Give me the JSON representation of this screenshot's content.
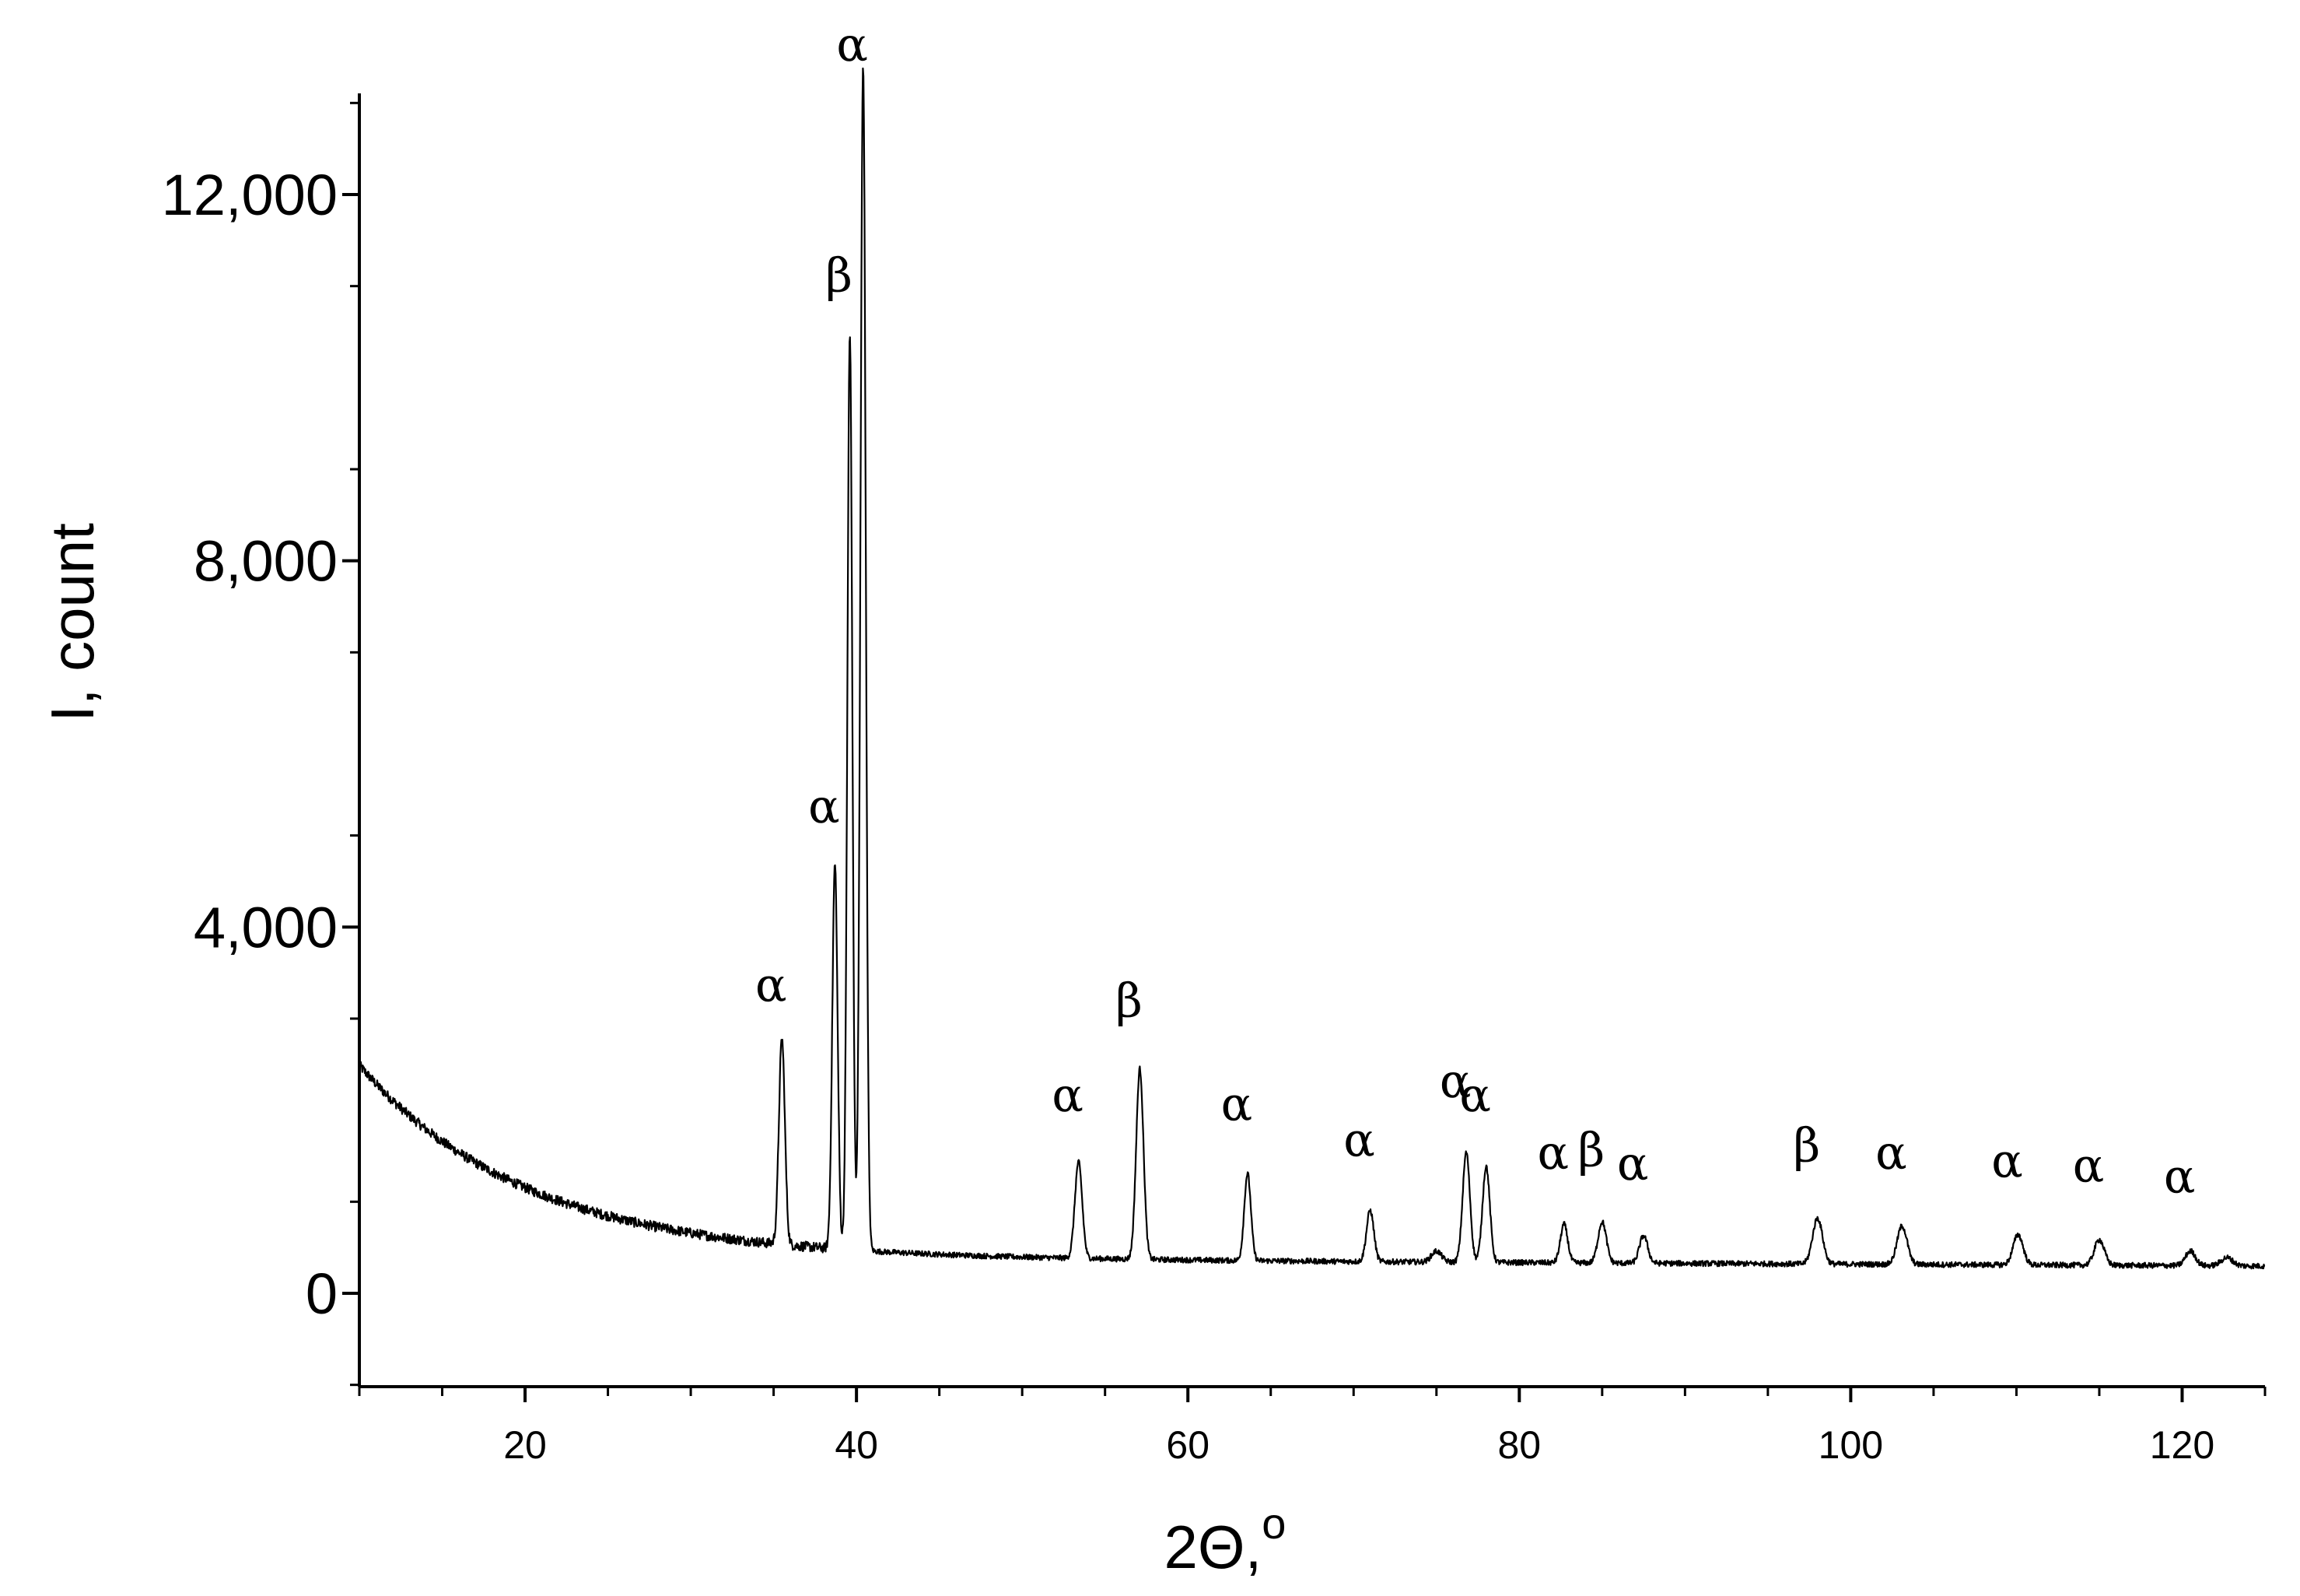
{
  "chart_data": {
    "type": "line",
    "title": "",
    "xlabel": "2Θ,",
    "xlabel_superscript": "o",
    "ylabel": "I, count",
    "xlim": [
      10,
      125
    ],
    "ylim": [
      -1000,
      13000
    ],
    "x_major_ticks": [
      20,
      40,
      60,
      80,
      100,
      120
    ],
    "x_tick_labels": [
      "20",
      "40",
      "60",
      "80",
      "100",
      "120"
    ],
    "x_minor_step": 5,
    "y_major_ticks": [
      0,
      4000,
      8000,
      12000
    ],
    "y_tick_labels": [
      "0",
      "4,000",
      "8,000",
      "12,000"
    ],
    "y_minor_step": 2000,
    "grid": false,
    "legend": "none",
    "line_color": "#000000",
    "background": {
      "start_x": 10,
      "start_y": 2450,
      "end_x": 125,
      "end_y": 250,
      "pre_peak_level": 600,
      "decay_width": 10,
      "tail_level": 350,
      "tail_slope": -0.8
    },
    "peaks": [
      {
        "x": 35.5,
        "y": 2250,
        "width": 0.18,
        "label": "α"
      },
      {
        "x": 38.7,
        "y": 4200,
        "width": 0.16,
        "label": "α"
      },
      {
        "x": 39.6,
        "y": 10000,
        "width": 0.15,
        "label": "β"
      },
      {
        "x": 40.4,
        "y": 12950,
        "width": 0.16,
        "label": "α"
      },
      {
        "x": 53.4,
        "y": 1050,
        "width": 0.22,
        "label": "α"
      },
      {
        "x": 57.1,
        "y": 2080,
        "width": 0.22,
        "label": "β"
      },
      {
        "x": 63.6,
        "y": 950,
        "width": 0.2,
        "label": "α"
      },
      {
        "x": 71.0,
        "y": 560,
        "width": 0.22,
        "label": "α"
      },
      {
        "x": 76.8,
        "y": 1200,
        "width": 0.22,
        "label": "α"
      },
      {
        "x": 78.0,
        "y": 1050,
        "width": 0.22,
        "label": "α"
      },
      {
        "x": 82.7,
        "y": 420,
        "width": 0.22,
        "label": "α"
      },
      {
        "x": 85.0,
        "y": 450,
        "width": 0.25,
        "label": "β"
      },
      {
        "x": 87.5,
        "y": 300,
        "width": 0.25,
        "label": "α"
      },
      {
        "x": 98.0,
        "y": 500,
        "width": 0.3,
        "label": "β"
      },
      {
        "x": 103.1,
        "y": 420,
        "width": 0.3,
        "label": "α"
      },
      {
        "x": 110.1,
        "y": 330,
        "width": 0.3,
        "label": "α"
      },
      {
        "x": 115.0,
        "y": 280,
        "width": 0.3,
        "label": "α"
      },
      {
        "x": 120.5,
        "y": 160,
        "width": 0.3,
        "label": "α"
      },
      {
        "x": 75.0,
        "y": 120,
        "width": 0.3,
        "label": ""
      },
      {
        "x": 122.7,
        "y": 90,
        "width": 0.35,
        "label": ""
      }
    ]
  }
}
